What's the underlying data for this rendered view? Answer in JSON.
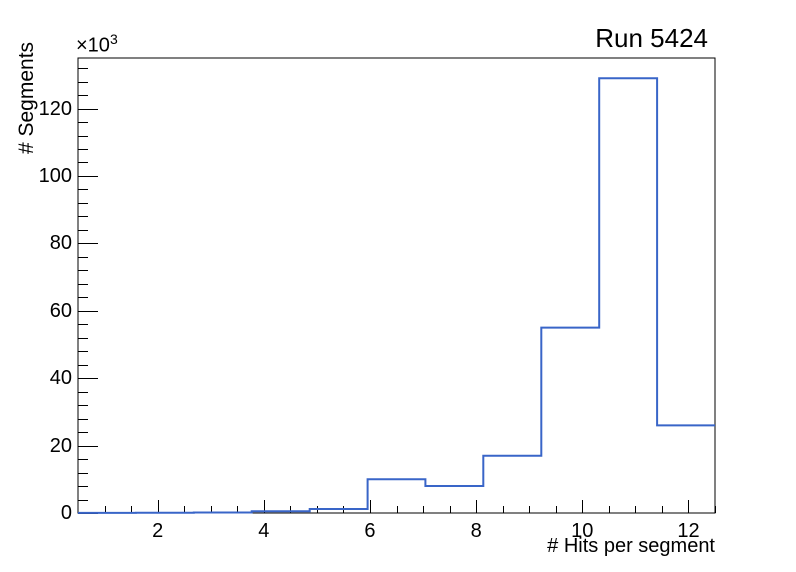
{
  "window": {
    "background_color": "#ffffff"
  },
  "chart_data": {
    "type": "bar",
    "style": "step-histogram-outline",
    "title": "Run 5424",
    "xlabel": "# Hits per segment",
    "ylabel": "# Segments",
    "y_axis_multiplier": {
      "base": "×10",
      "exponent": "3"
    },
    "y_unit_scale": 1000,
    "n_bins": 11,
    "bin_edges": [
      0.5,
      1.591,
      2.682,
      3.773,
      4.864,
      5.955,
      7.045,
      8.136,
      9.227,
      10.318,
      11.409,
      12.5
    ],
    "values_in_thousands": [
      0.02,
      0.06,
      0.15,
      0.5,
      1.2,
      10,
      8,
      17,
      55,
      129,
      26
    ],
    "xlim": [
      0.5,
      12.5
    ],
    "ylim": [
      0,
      135
    ],
    "x_major_ticks": [
      2,
      4,
      6,
      8,
      10,
      12
    ],
    "x_major_tick_labels": [
      "2",
      "4",
      "6",
      "8",
      "10",
      "12"
    ],
    "x_minor_tick_step": 0.5,
    "y_major_ticks": [
      0,
      20,
      40,
      60,
      80,
      100,
      120
    ],
    "y_major_tick_labels": [
      "0",
      "20",
      "40",
      "60",
      "80",
      "100",
      "120"
    ],
    "y_minor_tick_step": 4,
    "grid": false,
    "legend": false,
    "line_color": "#3965c8",
    "frame_color": "#000000",
    "text_color": "#000000"
  }
}
